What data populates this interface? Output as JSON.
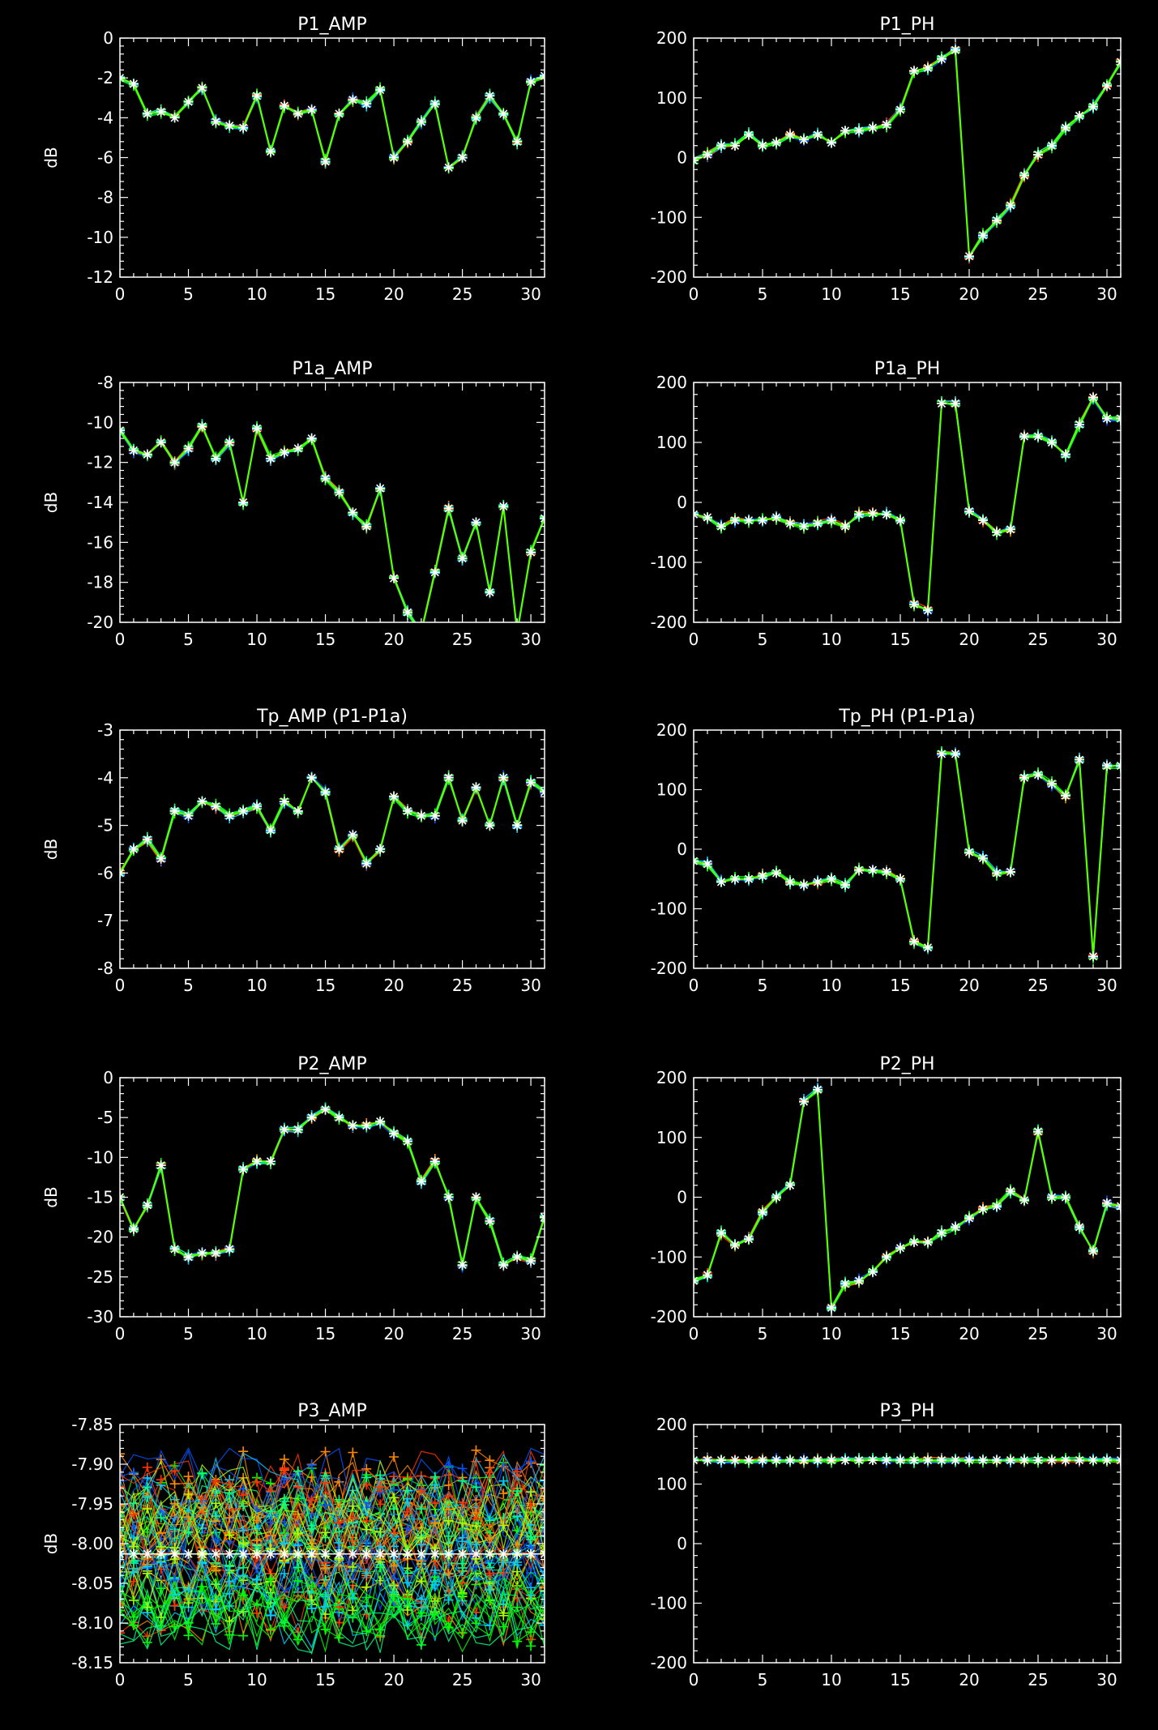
{
  "background": "#000000",
  "axis_color": "#ffffff",
  "series_palette": [
    "#ff3300",
    "#ff8800",
    "#0055ff",
    "#00ccff",
    "#00ff88",
    "#00ff00",
    "#aaff00",
    "#ffffff"
  ],
  "chart_data": [
    {
      "type": "line",
      "title": "P1_AMP",
      "xlabel": "",
      "ylabel": "dB",
      "xlim": [
        0,
        31
      ],
      "ylim": [
        -12,
        0
      ],
      "xticks": [
        0,
        5,
        10,
        15,
        20,
        25,
        30
      ],
      "yticks": [
        0,
        -2,
        -4,
        -6,
        -8,
        -10,
        -12
      ],
      "x": [
        0,
        1,
        2,
        3,
        4,
        5,
        6,
        7,
        8,
        9,
        10,
        11,
        12,
        13,
        14,
        15,
        16,
        17,
        18,
        19,
        20,
        21,
        22,
        23,
        24,
        25,
        26,
        27,
        28,
        29,
        30,
        31
      ],
      "values": [
        -2.0,
        -2.3,
        -3.8,
        -3.7,
        -4.0,
        -3.2,
        -2.5,
        -4.2,
        -4.4,
        -4.5,
        -2.9,
        -5.7,
        -3.4,
        -3.8,
        -3.6,
        -6.2,
        -3.8,
        -3.1,
        -3.3,
        -2.6,
        -6.0,
        -5.2,
        -4.2,
        -3.3,
        -6.5,
        -6.0,
        -4.0,
        -2.9,
        -3.8,
        -5.2,
        -2.2,
        -1.9
      ]
    },
    {
      "type": "line",
      "title": "P1_PH",
      "xlabel": "",
      "ylabel": "",
      "xlim": [
        0,
        31
      ],
      "ylim": [
        -200,
        200
      ],
      "xticks": [
        0,
        5,
        10,
        15,
        20,
        25,
        30
      ],
      "yticks": [
        200,
        100,
        0,
        -100,
        -200
      ],
      "x": [
        0,
        1,
        2,
        3,
        4,
        5,
        6,
        7,
        8,
        9,
        10,
        11,
        12,
        13,
        14,
        15,
        16,
        17,
        18,
        19,
        20,
        21,
        22,
        23,
        24,
        25,
        26,
        27,
        28,
        29,
        30,
        31
      ],
      "values": [
        -5,
        5,
        20,
        20,
        38,
        20,
        25,
        38,
        30,
        38,
        25,
        45,
        45,
        50,
        55,
        80,
        145,
        150,
        165,
        180,
        -165,
        -130,
        -105,
        -80,
        -30,
        5,
        20,
        50,
        70,
        85,
        120,
        160
      ]
    },
    {
      "type": "line",
      "title": "P1a_AMP",
      "xlabel": "",
      "ylabel": "dB",
      "xlim": [
        0,
        31
      ],
      "ylim": [
        -20,
        -8
      ],
      "xticks": [
        0,
        5,
        10,
        15,
        20,
        25,
        30
      ],
      "yticks": [
        -8,
        -10,
        -12,
        -14,
        -16,
        -18,
        -20
      ],
      "x": [
        0,
        1,
        2,
        3,
        4,
        5,
        6,
        7,
        8,
        9,
        10,
        11,
        12,
        13,
        14,
        15,
        16,
        17,
        18,
        19,
        20,
        21,
        22,
        23,
        24,
        25,
        26,
        27,
        28,
        29,
        30,
        31
      ],
      "values": [
        -10.4,
        -11.4,
        -11.6,
        -11.0,
        -12.0,
        -11.3,
        -10.2,
        -11.8,
        -11.0,
        -14.0,
        -10.3,
        -11.8,
        -11.5,
        -11.3,
        -10.8,
        -12.8,
        -13.5,
        -14.5,
        -15.2,
        -13.3,
        -17.8,
        -19.5,
        -20.5,
        -17.5,
        -14.3,
        -16.8,
        -15.0,
        -18.5,
        -14.2,
        -20.5,
        -16.5,
        -14.8
      ]
    },
    {
      "type": "line",
      "title": "P1a_PH",
      "xlabel": "",
      "ylabel": "",
      "xlim": [
        0,
        31
      ],
      "ylim": [
        -200,
        200
      ],
      "xticks": [
        0,
        5,
        10,
        15,
        20,
        25,
        30
      ],
      "yticks": [
        200,
        100,
        0,
        -100,
        -200
      ],
      "x": [
        0,
        1,
        2,
        3,
        4,
        5,
        6,
        7,
        8,
        9,
        10,
        11,
        12,
        13,
        14,
        15,
        16,
        17,
        18,
        19,
        20,
        21,
        22,
        23,
        24,
        25,
        26,
        27,
        28,
        29,
        30,
        31
      ],
      "values": [
        -20,
        -25,
        -40,
        -30,
        -30,
        -30,
        -25,
        -35,
        -40,
        -35,
        -30,
        -40,
        -20,
        -18,
        -20,
        -30,
        -170,
        -180,
        165,
        165,
        -15,
        -30,
        -50,
        -45,
        110,
        110,
        100,
        80,
        130,
        175,
        140,
        140
      ]
    },
    {
      "type": "line",
      "title": "Tp_AMP (P1-P1a)",
      "xlabel": "",
      "ylabel": "dB",
      "xlim": [
        0,
        31
      ],
      "ylim": [
        -8,
        -3
      ],
      "xticks": [
        0,
        5,
        10,
        15,
        20,
        25,
        30
      ],
      "yticks": [
        -3,
        -4,
        -5,
        -6,
        -7,
        -8
      ],
      "x": [
        0,
        1,
        2,
        3,
        4,
        5,
        6,
        7,
        8,
        9,
        10,
        11,
        12,
        13,
        14,
        15,
        16,
        17,
        18,
        19,
        20,
        21,
        22,
        23,
        24,
        25,
        26,
        27,
        28,
        29,
        30,
        31
      ],
      "values": [
        -6.0,
        -5.5,
        -5.3,
        -5.7,
        -4.7,
        -4.8,
        -4.5,
        -4.6,
        -4.8,
        -4.7,
        -4.6,
        -5.1,
        -4.5,
        -4.7,
        -4.0,
        -4.3,
        -5.5,
        -5.2,
        -5.8,
        -5.5,
        -4.4,
        -4.7,
        -4.8,
        -4.8,
        -4.0,
        -4.9,
        -4.2,
        -5.0,
        -4.0,
        -5.0,
        -4.1,
        -4.3
      ]
    },
    {
      "type": "line",
      "title": "Tp_PH (P1-P1a)",
      "xlabel": "",
      "ylabel": "",
      "xlim": [
        0,
        31
      ],
      "ylim": [
        -200,
        200
      ],
      "xticks": [
        0,
        5,
        10,
        15,
        20,
        25,
        30
      ],
      "yticks": [
        200,
        100,
        0,
        -100,
        -200
      ],
      "x": [
        0,
        1,
        2,
        3,
        4,
        5,
        6,
        7,
        8,
        9,
        10,
        11,
        12,
        13,
        14,
        15,
        16,
        17,
        18,
        19,
        20,
        21,
        22,
        23,
        24,
        25,
        26,
        27,
        28,
        29,
        30,
        31
      ],
      "values": [
        -20,
        -25,
        -55,
        -50,
        -50,
        -45,
        -40,
        -55,
        -60,
        -55,
        -50,
        -60,
        -35,
        -35,
        -38,
        -50,
        -155,
        -165,
        160,
        160,
        -5,
        -15,
        -40,
        -38,
        120,
        125,
        110,
        90,
        150,
        -180,
        140,
        140
      ]
    },
    {
      "type": "line",
      "title": "P2_AMP",
      "xlabel": "",
      "ylabel": "dB",
      "xlim": [
        0,
        31
      ],
      "ylim": [
        -30,
        0
      ],
      "xticks": [
        0,
        5,
        10,
        15,
        20,
        25,
        30
      ],
      "yticks": [
        0,
        -5,
        -10,
        -15,
        -20,
        -25,
        -30
      ],
      "x": [
        0,
        1,
        2,
        3,
        4,
        5,
        6,
        7,
        8,
        9,
        10,
        11,
        12,
        13,
        14,
        15,
        16,
        17,
        18,
        19,
        20,
        21,
        22,
        23,
        24,
        25,
        26,
        27,
        28,
        29,
        30,
        31
      ],
      "values": [
        -15,
        -19,
        -16,
        -11,
        -21.5,
        -22.5,
        -22,
        -22,
        -21.5,
        -11.5,
        -10.5,
        -10.5,
        -6.5,
        -6.5,
        -5,
        -4,
        -5,
        -6,
        -6,
        -5.5,
        -7,
        -8,
        -13,
        -10.5,
        -15,
        -23.5,
        -15,
        -18,
        -23.5,
        -22.5,
        -23,
        -17.5
      ]
    },
    {
      "type": "line",
      "title": "P2_PH",
      "xlabel": "",
      "ylabel": "",
      "xlim": [
        0,
        31
      ],
      "ylim": [
        -200,
        200
      ],
      "xticks": [
        0,
        5,
        10,
        15,
        20,
        25,
        30
      ],
      "yticks": [
        200,
        100,
        0,
        -100,
        -200
      ],
      "x": [
        0,
        1,
        2,
        3,
        4,
        5,
        6,
        7,
        8,
        9,
        10,
        11,
        12,
        13,
        14,
        15,
        16,
        17,
        18,
        19,
        20,
        21,
        22,
        23,
        24,
        25,
        26,
        27,
        28,
        29,
        30,
        31
      ],
      "values": [
        -140,
        -130,
        -60,
        -80,
        -70,
        -25,
        0,
        20,
        160,
        180,
        -185,
        -145,
        -140,
        -125,
        -100,
        -85,
        -75,
        -75,
        -60,
        -50,
        -35,
        -20,
        -15,
        10,
        -5,
        110,
        0,
        0,
        -50,
        -90,
        -10,
        -15
      ]
    },
    {
      "type": "line",
      "title": "P3_AMP",
      "xlabel": "",
      "ylabel": "dB",
      "xlim": [
        0,
        31
      ],
      "ylim": [
        -8.15,
        -7.85
      ],
      "xticks": [
        0,
        5,
        10,
        15,
        20,
        25,
        30
      ],
      "yticks": [
        -7.85,
        -7.9,
        -7.95,
        -8.0,
        -8.05,
        -8.1,
        -8.15
      ],
      "ytick_labels": [
        "-7.85",
        "-7.90",
        "-7.95",
        "-8.00",
        "-8.05",
        "-8.10",
        "-8.15"
      ],
      "band": [
        -8.14,
        -7.88
      ],
      "x": [
        0,
        1,
        2,
        3,
        4,
        5,
        6,
        7,
        8,
        9,
        10,
        11,
        12,
        13,
        14,
        15,
        16,
        17,
        18,
        19,
        20,
        21,
        22,
        23,
        24,
        25,
        26,
        27,
        28,
        29,
        30,
        31
      ],
      "values": [
        -8.013,
        -8.013,
        -8.013,
        -8.013,
        -8.013,
        -8.013,
        -8.013,
        -8.013,
        -8.013,
        -8.013,
        -8.013,
        -8.013,
        -8.013,
        -8.013,
        -8.013,
        -8.013,
        -8.013,
        -8.013,
        -8.013,
        -8.013,
        -8.013,
        -8.013,
        -8.013,
        -8.013,
        -8.013,
        -8.013,
        -8.013,
        -8.013,
        -8.013,
        -8.013,
        -8.013,
        -8.013
      ]
    },
    {
      "type": "line",
      "title": "P3_PH",
      "xlabel": "",
      "ylabel": "",
      "xlim": [
        0,
        31
      ],
      "ylim": [
        -200,
        200
      ],
      "xticks": [
        0,
        5,
        10,
        15,
        20,
        25,
        30
      ],
      "yticks": [
        200,
        100,
        0,
        -100,
        -200
      ],
      "x": [
        0,
        1,
        2,
        3,
        4,
        5,
        6,
        7,
        8,
        9,
        10,
        11,
        12,
        13,
        14,
        15,
        16,
        17,
        18,
        19,
        20,
        21,
        22,
        23,
        24,
        25,
        26,
        27,
        28,
        29,
        30,
        31
      ],
      "values": [
        140,
        140,
        140,
        140,
        140,
        140,
        140,
        140,
        140,
        140,
        140,
        140,
        140,
        140,
        140,
        140,
        140,
        140,
        140,
        140,
        140,
        140,
        140,
        140,
        140,
        140,
        140,
        140,
        140,
        140,
        140,
        140
      ]
    }
  ]
}
